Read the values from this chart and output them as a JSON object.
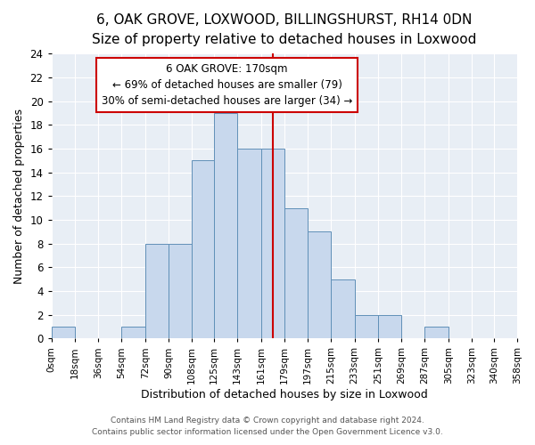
{
  "title1": "6, OAK GROVE, LOXWOOD, BILLINGSHURST, RH14 0DN",
  "title2": "Size of property relative to detached houses in Loxwood",
  "xlabel": "Distribution of detached houses by size in Loxwood",
  "ylabel": "Number of detached properties",
  "bar_heights": [
    1,
    0,
    0,
    1,
    8,
    8,
    15,
    19,
    16,
    16,
    11,
    9,
    5,
    2,
    2,
    0,
    1,
    0,
    0,
    0
  ],
  "bin_edges": [
    0,
    18,
    36,
    54,
    72,
    90,
    108,
    125,
    143,
    161,
    179,
    197,
    215,
    233,
    251,
    269,
    287,
    305,
    323,
    340,
    358
  ],
  "bar_color": "#c8d8ed",
  "bar_edge_color": "#6090b8",
  "vline_x": 170,
  "vline_color": "#cc0000",
  "ylim": [
    0,
    24
  ],
  "yticks": [
    0,
    2,
    4,
    6,
    8,
    10,
    12,
    14,
    16,
    18,
    20,
    22,
    24
  ],
  "annotation_title": "6 OAK GROVE: 170sqm",
  "annotation_line1": "← 69% of detached houses are smaller (79)",
  "annotation_line2": "30% of semi-detached houses are larger (34) →",
  "annotation_box_color": "#ffffff",
  "annotation_box_edge": "#cc0000",
  "footer1": "Contains HM Land Registry data © Crown copyright and database right 2024.",
  "footer2": "Contains public sector information licensed under the Open Government Licence v3.0.",
  "fig_bg_color": "#ffffff",
  "plot_bg_color": "#e8eef5",
  "grid_color": "#ffffff",
  "title1_fontsize": 11,
  "title2_fontsize": 9.5
}
